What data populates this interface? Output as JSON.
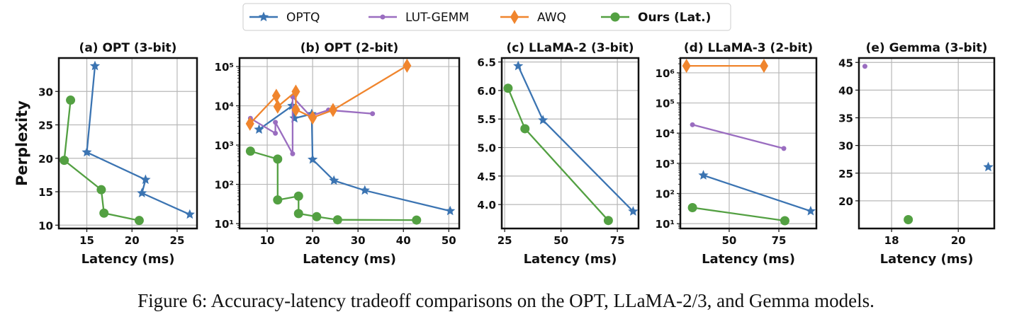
{
  "colors": {
    "OPTQ": "#3b74b2",
    "LUT-GEMM": "#9a6dc0",
    "AWQ": "#f0852d",
    "Ours (Lat.)": "#53a042"
  },
  "legend": [
    {
      "label": "OPTQ",
      "marker": "star"
    },
    {
      "label": "LUT-GEMM",
      "marker": "dot"
    },
    {
      "label": "AWQ",
      "marker": "diamond"
    },
    {
      "label": "Ours (Lat.)",
      "marker": "circle",
      "bold": true
    }
  ],
  "caption": "Figure 6: Accuracy-latency tradeoff comparisons on the OPT, LLaMA-2/3, and Gemma models.",
  "chart_data": [
    {
      "type": "line",
      "title": "(a) OPT (3-bit)",
      "xlabel": "Latency (ms)",
      "ylabel": "Perplexity",
      "yscale": "linear",
      "xlim": [
        11.9,
        27.2
      ],
      "ylim": [
        9.5,
        35
      ],
      "xticks": [
        15,
        20,
        25
      ],
      "xtick_labels": [
        "15",
        "20",
        "25"
      ],
      "yticks": [
        10,
        15,
        20,
        25,
        30
      ],
      "ytick_labels": [
        "10",
        "15",
        "20",
        "25",
        "30"
      ],
      "grid": true,
      "series": [
        {
          "name": "OPTQ",
          "x": [
            15.9,
            15.0,
            21.5,
            21.1,
            26.4
          ],
          "y": [
            33.8,
            20.9,
            16.8,
            14.8,
            11.6
          ]
        },
        {
          "name": "Ours (Lat.)",
          "x": [
            13.2,
            12.5,
            16.6,
            16.9,
            20.8
          ],
          "y": [
            28.7,
            19.7,
            15.3,
            11.8,
            10.7
          ]
        }
      ]
    },
    {
      "type": "line",
      "title": "(b) OPT (2-bit)",
      "xlabel": "Latency (ms)",
      "ylabel": "",
      "yscale": "log",
      "xlim": [
        3.9,
        52.3
      ],
      "ylim": [
        7.5,
        165000
      ],
      "xticks": [
        10,
        20,
        30,
        40,
        50
      ],
      "xtick_labels": [
        "10",
        "20",
        "30",
        "40",
        "50"
      ],
      "yticks": [
        10,
        100,
        1000,
        10000,
        100000
      ],
      "ytick_labels": [
        "10¹",
        "10²",
        "10³",
        "10⁴",
        "10⁵"
      ],
      "grid": true,
      "series": [
        {
          "name": "OPTQ",
          "x": [
            8.2,
            15.5,
            16.0,
            19.8,
            20.0,
            24.7,
            31.5,
            50.3
          ],
          "y": [
            2500,
            10000,
            4800,
            6200,
            430,
            125,
            70,
            21
          ]
        },
        {
          "name": "LUT-GEMM",
          "x": [
            6.3,
            11.8,
            11.8,
            15.6,
            15.6,
            19.5,
            23.5,
            33.2
          ],
          "y": [
            4800,
            2000,
            3800,
            600,
            17000,
            5500,
            7800,
            6300
          ]
        },
        {
          "name": "AWQ",
          "x": [
            6.2,
            12.0,
            12.3,
            16.3,
            16.3,
            20.0,
            24.5,
            40.8
          ],
          "y": [
            3500,
            18000,
            9500,
            23000,
            8000,
            5000,
            7800,
            105000
          ]
        },
        {
          "name": "Ours (Lat.)",
          "x": [
            6.3,
            12.3,
            12.3,
            16.9,
            16.9,
            20.9,
            25.5,
            42.9
          ],
          "y": [
            700,
            440,
            40,
            50,
            18,
            15,
            12.5,
            12.3
          ]
        }
      ]
    },
    {
      "type": "line",
      "title": "(c) LLaMA-2 (3-bit)",
      "xlabel": "Latency (ms)",
      "ylabel": "",
      "yscale": "linear",
      "xlim": [
        23.7,
        84.4
      ],
      "ylim": [
        3.58,
        6.57
      ],
      "xticks": [
        25,
        50,
        75
      ],
      "xtick_labels": [
        "25",
        "50",
        "75"
      ],
      "yticks": [
        4.0,
        4.5,
        5.0,
        5.5,
        6.0,
        6.5
      ],
      "ytick_labels": [
        "4.0",
        "4.5",
        "5.0",
        "5.5",
        "6.0",
        "6.5"
      ],
      "grid": true,
      "series": [
        {
          "name": "OPTQ",
          "x": [
            31,
            42,
            82
          ],
          "y": [
            6.43,
            5.48,
            3.88
          ]
        },
        {
          "name": "Ours (Lat.)",
          "x": [
            26.5,
            34,
            71
          ],
          "y": [
            6.04,
            5.33,
            3.72
          ]
        }
      ]
    },
    {
      "type": "line",
      "title": "(d) LLaMA-3 (2-bit)",
      "xlabel": "Latency (ms)",
      "ylabel": "",
      "yscale": "log",
      "xlim": [
        25.4,
        93.9
      ],
      "ylim": [
        6.9,
        3100000
      ],
      "xticks": [
        50,
        75
      ],
      "xtick_labels": [
        "50",
        "75"
      ],
      "yticks": [
        10,
        100,
        1000,
        10000,
        100000,
        1000000
      ],
      "ytick_labels": [
        "10¹",
        "10²",
        "10³",
        "10⁴",
        "10⁵",
        "10⁶"
      ],
      "grid": true,
      "series": [
        {
          "name": "AWQ",
          "x": [
            28.5,
            67.5
          ],
          "y": [
            1700000,
            1700000
          ]
        },
        {
          "name": "LUT-GEMM",
          "x": [
            31.5,
            77.5
          ],
          "y": [
            19000,
            3100
          ]
        },
        {
          "name": "OPTQ",
          "x": [
            37,
            91
          ],
          "y": [
            400,
            26
          ]
        },
        {
          "name": "Ours (Lat.)",
          "x": [
            31.5,
            78
          ],
          "y": [
            34,
            12.5
          ]
        }
      ]
    },
    {
      "type": "scatter",
      "title": "(e) Gemma (3-bit)",
      "xlabel": "Latency (ms)",
      "ylabel": "",
      "yscale": "linear",
      "xlim": [
        17.02,
        21.08
      ],
      "ylim": [
        15.0,
        45.8
      ],
      "xticks": [
        18,
        20
      ],
      "xtick_labels": [
        "18",
        "20"
      ],
      "yticks": [
        20,
        25,
        30,
        35,
        40,
        45
      ],
      "ytick_labels": [
        "20",
        "25",
        "30",
        "35",
        "40",
        "45"
      ],
      "grid": true,
      "series": [
        {
          "name": "LUT-GEMM",
          "x": [
            17.2
          ],
          "y": [
            44.3
          ]
        },
        {
          "name": "OPTQ",
          "x": [
            20.9
          ],
          "y": [
            26.1
          ]
        },
        {
          "name": "Ours (Lat.)",
          "x": [
            18.5
          ],
          "y": [
            16.6
          ]
        }
      ]
    }
  ]
}
